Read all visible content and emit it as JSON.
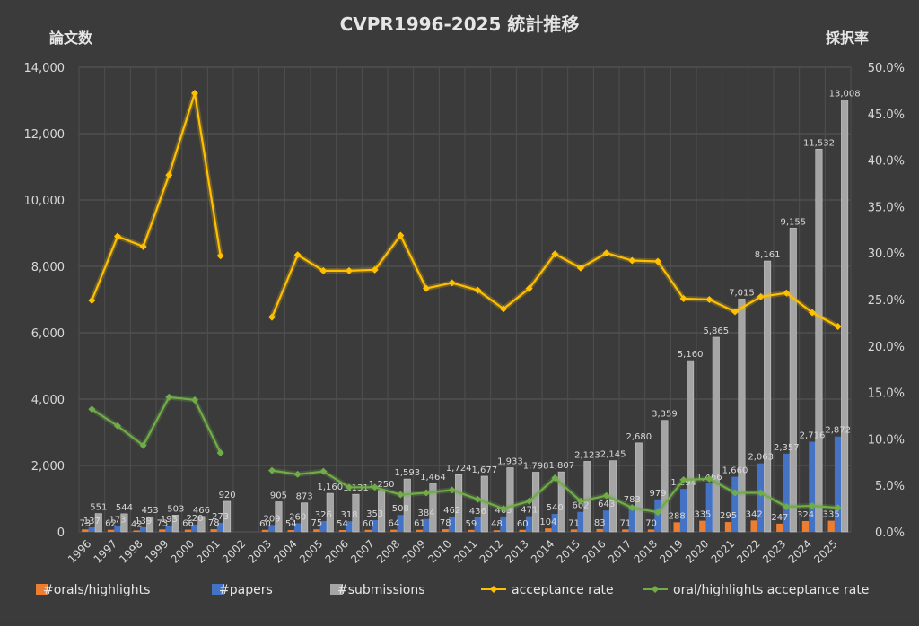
{
  "chart_data": {
    "type": "bar",
    "title": "CVPR1996-2025 統計推移",
    "y_left_title": "論文数",
    "y_right_title": "採択率",
    "ylim_left": [
      0,
      14000
    ],
    "ylim_right": [
      0,
      0.5
    ],
    "y_left_ticks": [
      "0",
      "2,000",
      "4,000",
      "6,000",
      "8,000",
      "10,000",
      "12,000",
      "14,000"
    ],
    "y_right_ticks": [
      "0.0%",
      "5.0%",
      "10.0%",
      "15.0%",
      "20.0%",
      "25.0%",
      "30.0%",
      "35.0%",
      "40.0%",
      "45.0%",
      "50.0%"
    ],
    "grid": true,
    "legend_position": "bottom",
    "categories": [
      "1996",
      "1997",
      "1998",
      "1999",
      "2000",
      "2001",
      "2002",
      "2003",
      "2004",
      "2005",
      "2006",
      "2007",
      "2008",
      "2009",
      "2010",
      "2011",
      "2012",
      "2013",
      "2014",
      "2015",
      "2016",
      "2017",
      "2018",
      "2019",
      "2020",
      "2021",
      "2022",
      "2023",
      "2024",
      "2025"
    ],
    "series": [
      {
        "name": "#orals/highlights",
        "kind": "bar",
        "axis": "left",
        "color": "#ed7d31",
        "values": [
          73,
          62,
          42,
          73,
          66,
          78,
          null,
          60,
          54,
          75,
          54,
          60,
          64,
          61,
          78,
          59,
          48,
          60,
          104,
          71,
          83,
          71,
          70,
          288,
          335,
          295,
          342,
          247,
          324,
          335
        ],
        "labels": [
          "73",
          "62",
          "42",
          "73",
          "66",
          "78",
          "",
          "60",
          "54",
          "75",
          "54",
          "60",
          "64",
          "61",
          "78",
          "59",
          "48",
          "60",
          "104",
          "71",
          "83",
          "71",
          "70",
          "288",
          "335",
          "295",
          "342",
          "247",
          "324",
          "335"
        ]
      },
      {
        "name": "#papers",
        "kind": "bar",
        "axis": "left",
        "color": "#4472c4",
        "values": [
          137,
          173,
          139,
          193,
          220,
          273,
          null,
          209,
          260,
          326,
          318,
          353,
          508,
          384,
          462,
          436,
          463,
          471,
          540,
          602,
          643,
          783,
          979,
          1294,
          1466,
          1660,
          2063,
          2357,
          2716,
          2872
        ],
        "labels": [
          "137",
          "173",
          "139",
          "193",
          "220",
          "273",
          "",
          "209",
          "260",
          "326",
          "318",
          "353",
          "508",
          "384",
          "462",
          "436",
          "463",
          "471",
          "540",
          "602",
          "643",
          "783",
          "979",
          "1,294",
          "1,466",
          "1,660",
          "2,063",
          "2,357",
          "2,716",
          "2,872"
        ]
      },
      {
        "name": "#submissions",
        "kind": "bar",
        "axis": "left",
        "color": "#a5a5a5",
        "values": [
          551,
          544,
          453,
          503,
          466,
          920,
          null,
          905,
          873,
          1160,
          1131,
          1250,
          1593,
          1464,
          1724,
          1677,
          1933,
          1798,
          1807,
          2123,
          2145,
          2680,
          3359,
          5160,
          5865,
          7015,
          8161,
          9155,
          11532,
          13008
        ],
        "labels": [
          "551",
          "544",
          "453",
          "503",
          "466",
          "920",
          "",
          "905",
          "873",
          "1,160",
          "1,131",
          "1,250",
          "1,593",
          "1,464",
          "1,724",
          "1,677",
          "1,933",
          "1,798",
          "1,807",
          "2,123",
          "2,145",
          "2,680",
          "3,359",
          "5,160",
          "5,865",
          "7,015",
          "8,161",
          "9,155",
          "11,532",
          "13,008"
        ]
      },
      {
        "name": "acceptance rate",
        "kind": "line",
        "axis": "right",
        "color": "#ffc000",
        "values": [
          0.249,
          0.318,
          0.307,
          0.384,
          0.472,
          0.297,
          null,
          0.231,
          0.298,
          0.281,
          0.281,
          0.282,
          0.319,
          0.262,
          0.268,
          0.26,
          0.24,
          0.262,
          0.299,
          0.284,
          0.3,
          0.292,
          0.291,
          0.251,
          0.25,
          0.237,
          0.253,
          0.257,
          0.236,
          0.221
        ]
      },
      {
        "name": "oral/highlights acceptance rate",
        "kind": "line",
        "axis": "right",
        "color": "#70ad47",
        "values": [
          0.132,
          0.114,
          0.093,
          0.145,
          0.142,
          0.085,
          null,
          0.066,
          0.062,
          0.065,
          0.048,
          0.048,
          0.04,
          0.042,
          0.045,
          0.035,
          0.025,
          0.033,
          0.058,
          0.033,
          0.039,
          0.026,
          0.021,
          0.056,
          0.057,
          0.042,
          0.042,
          0.027,
          0.028,
          0.026
        ]
      }
    ]
  }
}
